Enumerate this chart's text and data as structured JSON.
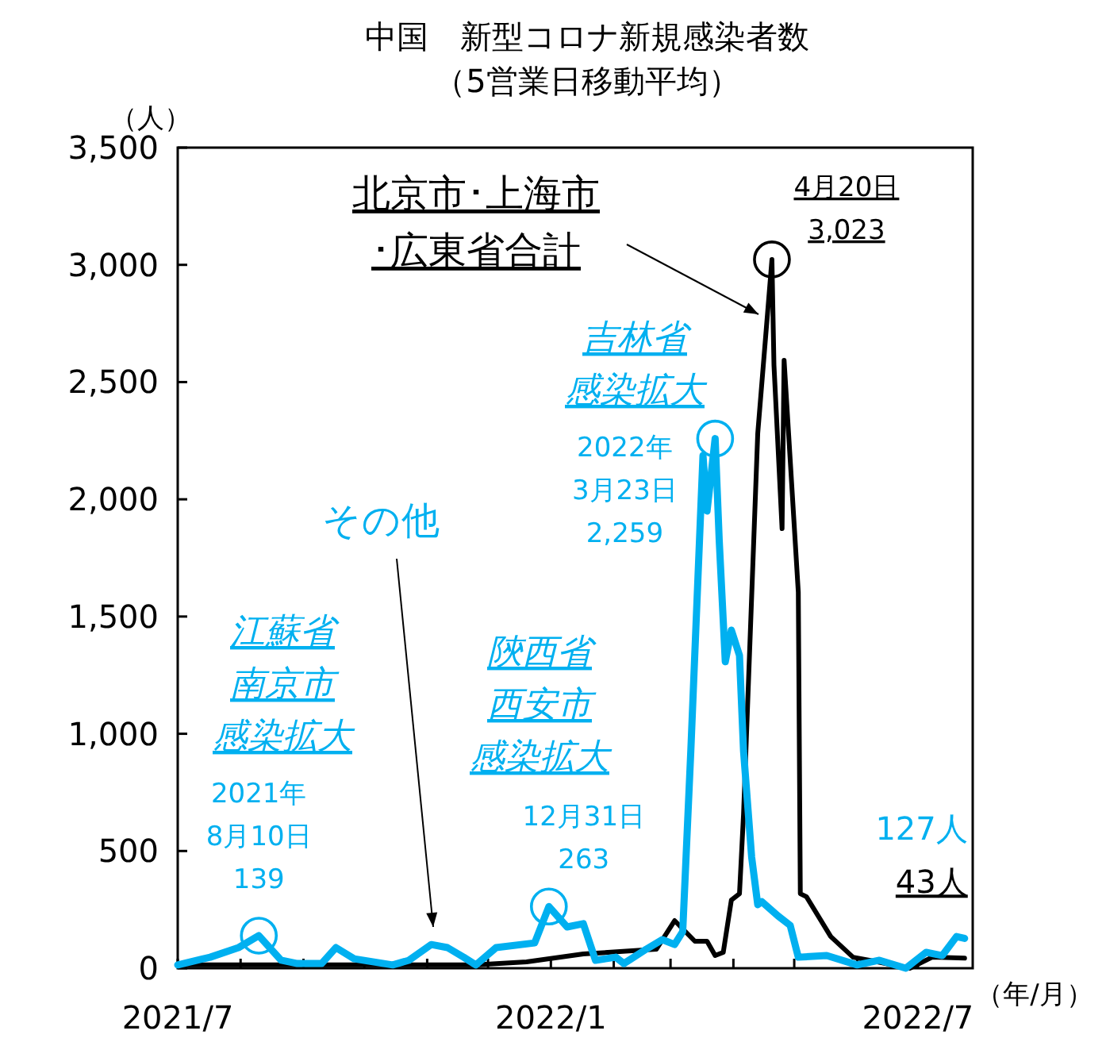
{
  "chart_data": {
    "type": "line",
    "title": "中国　新型コロナ新規感染者数",
    "subtitle": "（5営業日移動平均）",
    "ylabel": "（人）",
    "xlabel": "（年/月）",
    "xlim": [
      "2021-07-01",
      "2022-07-28"
    ],
    "xticks": [
      {
        "value": "2021-07-01",
        "label": "2021/7"
      },
      {
        "value": "2021-08-01",
        "label": null
      },
      {
        "value": "2021-09-01",
        "label": null
      },
      {
        "value": "2021-10-01",
        "label": null
      },
      {
        "value": "2021-11-01",
        "label": null
      },
      {
        "value": "2021-12-01",
        "label": null
      },
      {
        "value": "2022-01-01",
        "label": "2022/1"
      },
      {
        "value": "2022-02-01",
        "label": null
      },
      {
        "value": "2022-03-01",
        "label": null
      },
      {
        "value": "2022-04-01",
        "label": null
      },
      {
        "value": "2022-05-01",
        "label": null
      },
      {
        "value": "2022-06-01",
        "label": null
      },
      {
        "value": "2022-07-01",
        "label": "2022/7"
      }
    ],
    "ylim": [
      0,
      3500
    ],
    "yticks": [
      0,
      500,
      {
        "value": 1000,
        "label": "1,000"
      },
      {
        "value": 1500,
        "label": "1,500"
      },
      {
        "value": 2000,
        "label": "2,000"
      },
      {
        "value": 2500,
        "label": "2,500"
      },
      {
        "value": 3000,
        "label": "3,000"
      },
      {
        "value": 3500,
        "label": "3,500"
      }
    ],
    "grid": false,
    "series": [
      {
        "name": "北京市･上海市･広東省合計",
        "color": "#000000",
        "x": [
          "2021-07-01",
          "2021-11-25",
          "2021-12-20",
          "2022-01-17",
          "2022-02-22",
          "2022-03-03",
          "2022-03-13",
          "2022-03-19",
          "2022-03-23",
          "2022-03-27",
          "2022-03-31",
          "2022-04-04",
          "2022-04-06",
          "2022-04-13",
          "2022-04-20",
          "2022-04-21",
          "2022-04-25",
          "2022-04-26",
          "2022-05-03",
          "2022-05-04",
          "2022-05-07",
          "2022-05-19",
          "2022-05-30",
          "2022-06-07",
          "2022-06-27",
          "2022-07-08",
          "2022-07-24"
        ],
        "values": [
          14,
          14,
          27,
          61,
          81,
          203,
          115,
          115,
          54,
          68,
          291,
          318,
          657,
          2281,
          3023,
          2572,
          1875,
          2593,
          1604,
          318,
          305,
          135,
          47,
          34,
          0,
          47,
          43
        ]
      },
      {
        "name": "その他",
        "color": "#00b0f0",
        "x": [
          "2021-07-01",
          "2021-07-17",
          "2021-07-31",
          "2021-08-10",
          "2021-08-21",
          "2021-08-29",
          "2021-09-10",
          "2021-09-17",
          "2021-09-26",
          "2021-10-15",
          "2021-10-23",
          "2021-11-03",
          "2021-11-11",
          "2021-11-19",
          "2021-11-25",
          "2021-12-05",
          "2021-12-24",
          "2021-12-31",
          "2022-01-09",
          "2022-01-17",
          "2022-01-23",
          "2022-02-02",
          "2022-02-06",
          "2022-02-17",
          "2022-02-25",
          "2022-03-03",
          "2022-03-07",
          "2022-03-11",
          "2022-03-17",
          "2022-03-19",
          "2022-03-23",
          "2022-03-25",
          "2022-03-28",
          "2022-03-31",
          "2022-04-04",
          "2022-04-06",
          "2022-04-10",
          "2022-04-13",
          "2022-04-15",
          "2022-04-23",
          "2022-04-29",
          "2022-05-03",
          "2022-05-17",
          "2022-06-01",
          "2022-06-12",
          "2022-06-25",
          "2022-07-05",
          "2022-07-13",
          "2022-07-20",
          "2022-07-24"
        ],
        "values": [
          14,
          47,
          88,
          139,
          34,
          20,
          20,
          88,
          40,
          14,
          34,
          101,
          88,
          47,
          14,
          88,
          108,
          263,
          176,
          190,
          34,
          47,
          20,
          81,
          122,
          101,
          156,
          927,
          2187,
          1950,
          2259,
          1827,
          1307,
          1442,
          1334,
          927,
          474,
          271,
          284,
          223,
          183,
          47,
          54,
          14,
          34,
          0,
          68,
          54,
          135,
          127
        ]
      }
    ],
    "annotations": [
      "江蘇省",
      "南京市",
      "感染拡大",
      "陝西省",
      "西安市",
      "感染拡大",
      "吉林省",
      "感染拡大",
      {
        "text": "2021年\n8月10日\n139",
        "x": "2021-08-10",
        "y": 139
      },
      {
        "text": "12月31日\n263",
        "x": "2021-12-31",
        "y": 263
      },
      {
        "text": "2022年\n3月23日\n2,259",
        "x": "2022-03-23",
        "y": 2259
      },
      {
        "text": "4月20日\n3,023",
        "x": "2022-04-20",
        "y": 3023
      },
      {
        "text": "127人",
        "x": "2022-07-24",
        "y": 127
      },
      {
        "text": "43人",
        "x": "2022-07-24",
        "y": 43
      }
    ]
  }
}
